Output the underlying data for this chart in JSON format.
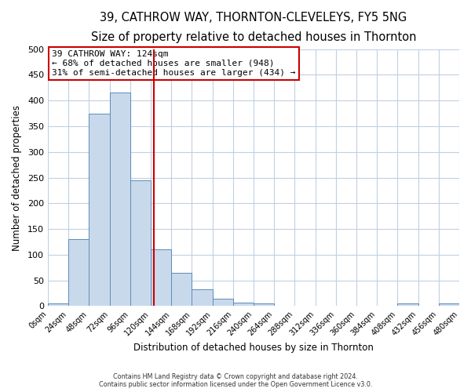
{
  "title": "39, CATHROW WAY, THORNTON-CLEVELEYS, FY5 5NG",
  "subtitle": "Size of property relative to detached houses in Thornton",
  "xlabel": "Distribution of detached houses by size in Thornton",
  "ylabel": "Number of detached properties",
  "bin_edges": [
    0,
    24,
    48,
    72,
    96,
    120,
    144,
    168,
    192,
    216,
    240,
    264,
    288,
    312,
    336,
    360,
    384,
    408,
    432,
    456,
    480
  ],
  "bar_heights": [
    5,
    130,
    375,
    415,
    245,
    110,
    65,
    33,
    15,
    7,
    5,
    0,
    0,
    0,
    0,
    0,
    0,
    5,
    0,
    5
  ],
  "bar_color": "#c9d9ec",
  "bar_edge_color": "#5b8db8",
  "vline_x": 124,
  "vline_color": "#cc0000",
  "annotation_title": "39 CATHROW WAY: 124sqm",
  "annotation_line1": "← 68% of detached houses are smaller (948)",
  "annotation_line2": "31% of semi-detached houses are larger (434) →",
  "annotation_box_color": "#ffffff",
  "annotation_box_edge_color": "#cc0000",
  "footer_line1": "Contains HM Land Registry data © Crown copyright and database right 2024.",
  "footer_line2": "Contains public sector information licensed under the Open Government Licence v3.0.",
  "ylim": [
    0,
    500
  ],
  "xlim": [
    0,
    480
  ],
  "background_color": "#ffffff",
  "grid_color": "#c0d0e0",
  "title_fontsize": 10.5,
  "subtitle_fontsize": 9.5,
  "ylabel_fontsize": 8.5,
  "xlabel_fontsize": 8.5
}
